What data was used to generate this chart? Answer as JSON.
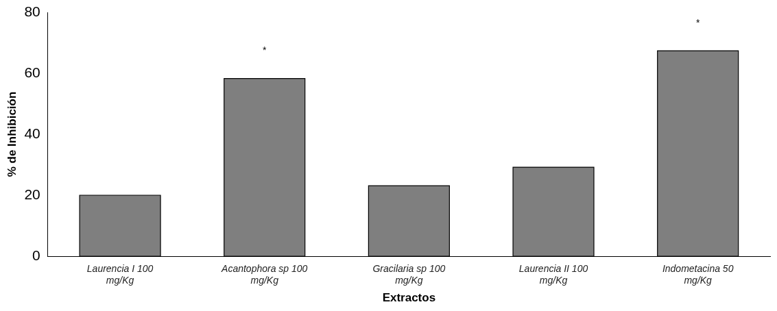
{
  "chart_data": {
    "type": "bar",
    "xlabel": "Extractos",
    "ylabel": "% de Inhibición",
    "categories": [
      "Laurencia I 100 mg/Kg",
      "Acantophora sp 100 mg/Kg",
      "Gracilaria sp 100 mg/Kg",
      "Laurencia II 100 mg/Kg",
      "Indometacina 50 mg/Kg"
    ],
    "values": [
      20,
      58.3,
      23.1,
      29.2,
      67.4
    ],
    "color": "#7f7f7f",
    "ylim": [
      0,
      80
    ],
    "yticks": [
      0,
      20,
      40,
      60,
      80
    ],
    "grid": false,
    "legend": false,
    "value_labels": [
      null,
      "*",
      null,
      null,
      "*"
    ]
  }
}
